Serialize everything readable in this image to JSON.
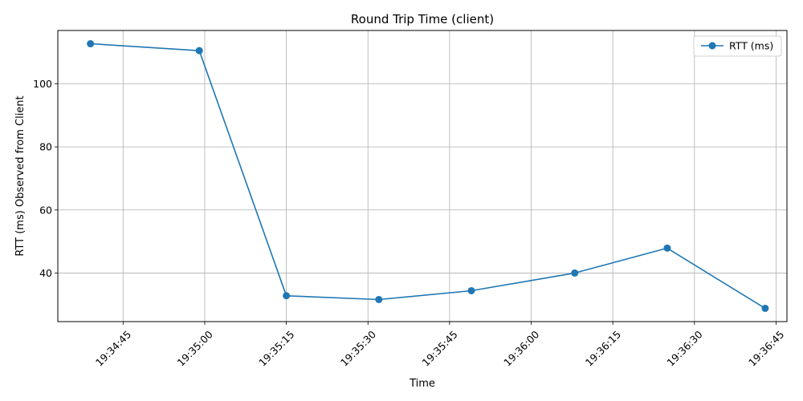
{
  "chart_data": {
    "type": "line",
    "title": "Round Trip Time (client)",
    "xlabel": "Time",
    "ylabel": "RTT (ms) Observed from Client",
    "series": [
      {
        "name": "RTT (ms)",
        "color": "#1f77b4",
        "marker": "circle",
        "x": [
          "19:34:39",
          "19:34:59",
          "19:35:15",
          "19:35:32",
          "19:35:49",
          "19:36:08",
          "19:36:25",
          "19:36:43"
        ],
        "values": [
          112.7,
          110.5,
          32.8,
          31.6,
          34.4,
          40.0,
          47.9,
          28.8
        ]
      }
    ],
    "x_ticks": [
      "19:34:45",
      "19:35:00",
      "19:35:15",
      "19:35:30",
      "19:35:45",
      "19:36:00",
      "19:36:15",
      "19:36:30",
      "19:36:45"
    ],
    "y_ticks": [
      40,
      60,
      80,
      100
    ],
    "xlim": [
      "19:34:33",
      "19:36:47"
    ],
    "ylim": [
      24.6,
      116.9
    ],
    "grid": true,
    "legend_position": "top-right"
  }
}
